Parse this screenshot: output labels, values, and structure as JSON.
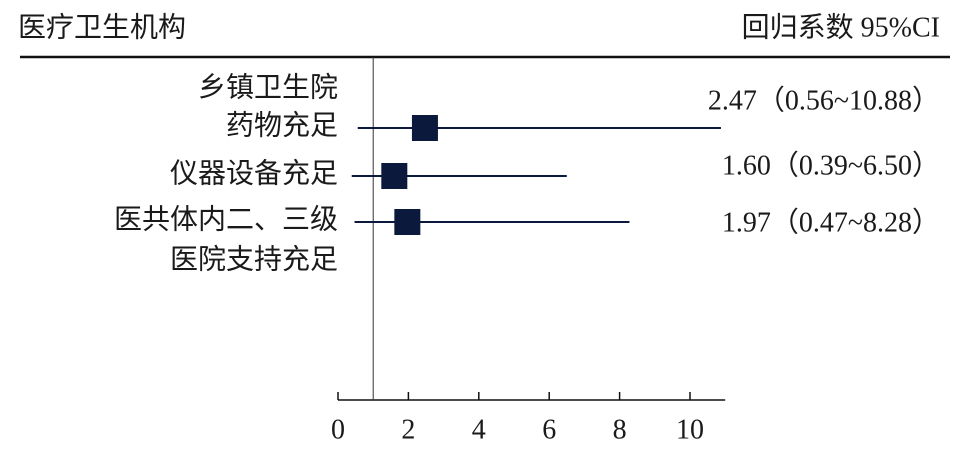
{
  "chart_data": {
    "type": "forest",
    "title": "医疗卫生机构",
    "column_title": "回归系数 95%CI",
    "group": "乡镇卫生院",
    "categories": [
      [
        "药物充足"
      ],
      [
        "仪器设备充足"
      ],
      [
        "医共体内二、三级",
        "医院支持充足"
      ]
    ],
    "values": [
      2.47,
      1.6,
      1.97
    ],
    "lower": [
      0.56,
      0.39,
      0.47
    ],
    "upper": [
      10.88,
      6.5,
      8.28
    ],
    "value_labels": [
      "2.47（0.56~10.88）",
      "1.60（0.39~6.50）",
      "1.97（0.47~8.28）"
    ],
    "reference": 1,
    "color": "#0b1a3c",
    "xlim": [
      0,
      11
    ],
    "xticks": [
      0,
      2,
      4,
      6,
      8,
      10
    ]
  }
}
